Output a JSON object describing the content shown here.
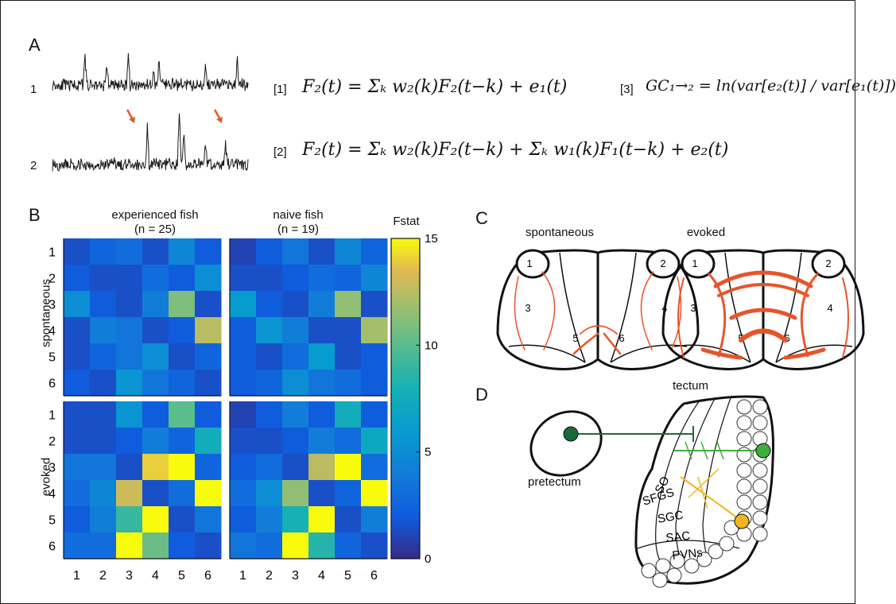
{
  "panels": {
    "a": "A",
    "b": "B",
    "c": "C",
    "d": "D"
  },
  "panel_a": {
    "trace_labels": [
      "1",
      "2"
    ],
    "eq1_num": "[1]",
    "eq2_num": "[2]",
    "eq3_num": "[3]",
    "eq1": "F₂(t) = Σₖ w₂(k)F₂(t−k) + e₁(t)",
    "eq2": "F₂(t) = Σₖ w₂(k)F₂(t−k) + Σₖ w₁(k)F₁(t−k) + e₂(t)",
    "eq3": "GC₁→₂ = ln(var[e₂(t)] / var[e₁(t)])",
    "arrow_color": "#e8542a"
  },
  "panel_b": {
    "col_titles": [
      {
        "line1": "experienced fish",
        "line2": "(n = 25)"
      },
      {
        "line1": "naive fish",
        "line2": "(n = 19)"
      }
    ],
    "row_titles": [
      "spontaneous",
      "evoked"
    ],
    "tick_labels": [
      "1",
      "2",
      "3",
      "4",
      "5",
      "6"
    ],
    "colorbar_title": "Fstat",
    "colorbar_ticks": [
      "15",
      "10",
      "5",
      "0"
    ],
    "colorbar_tick_values": [
      15,
      10,
      5,
      0
    ]
  },
  "chart_data": [
    {
      "type": "heatmap",
      "title": "experienced fish (n = 25)",
      "row_label": "spontaneous",
      "x": [
        1,
        2,
        3,
        4,
        5,
        6
      ],
      "y": [
        1,
        2,
        3,
        4,
        5,
        6
      ],
      "zlim": [
        0,
        15
      ],
      "colormap": "parula",
      "values": [
        [
          1.5,
          2.5,
          3.0,
          1.5,
          4.5,
          2.0
        ],
        [
          2.0,
          1.5,
          1.5,
          3.0,
          2.0,
          5.0
        ],
        [
          5.0,
          2.0,
          1.5,
          4.0,
          11.0,
          1.5
        ],
        [
          1.5,
          4.0,
          3.5,
          1.5,
          2.0,
          12.5
        ],
        [
          1.5,
          2.5,
          3.5,
          5.0,
          1.5,
          2.5
        ],
        [
          2.0,
          1.5,
          5.5,
          3.5,
          2.5,
          1.5
        ]
      ]
    },
    {
      "type": "heatmap",
      "title": "naive fish (n = 19)",
      "row_label": "spontaneous",
      "x": [
        1,
        2,
        3,
        4,
        5,
        6
      ],
      "y": [
        1,
        2,
        3,
        4,
        5,
        6
      ],
      "zlim": [
        0,
        15
      ],
      "colormap": "parula",
      "values": [
        [
          1.0,
          2.0,
          3.5,
          1.5,
          4.5,
          2.5
        ],
        [
          1.5,
          1.5,
          2.0,
          3.0,
          2.5,
          4.5
        ],
        [
          6.0,
          2.0,
          1.5,
          4.0,
          11.5,
          1.5
        ],
        [
          2.0,
          5.5,
          4.0,
          1.5,
          1.5,
          12.0
        ],
        [
          2.0,
          1.5,
          3.0,
          6.0,
          1.5,
          2.0
        ],
        [
          2.0,
          2.5,
          5.0,
          3.5,
          3.0,
          2.0
        ]
      ]
    },
    {
      "type": "heatmap",
      "title": "experienced fish (n = 25)",
      "row_label": "evoked",
      "x": [
        1,
        2,
        3,
        4,
        5,
        6
      ],
      "y": [
        1,
        2,
        3,
        4,
        5,
        6
      ],
      "zlim": [
        0,
        15
      ],
      "colormap": "parula",
      "values": [
        [
          1.5,
          1.5,
          5.5,
          2.0,
          10.0,
          2.0
        ],
        [
          1.5,
          1.5,
          2.0,
          4.0,
          2.5,
          7.5
        ],
        [
          3.5,
          3.5,
          1.5,
          14.0,
          15.0,
          2.5
        ],
        [
          3.0,
          4.5,
          13.0,
          1.5,
          3.0,
          15.0
        ],
        [
          2.0,
          4.0,
          9.0,
          15.0,
          1.5,
          3.5
        ],
        [
          3.0,
          3.0,
          15.0,
          10.5,
          2.0,
          1.5
        ]
      ]
    },
    {
      "type": "heatmap",
      "title": "naive fish (n = 19)",
      "row_label": "evoked",
      "x": [
        1,
        2,
        3,
        4,
        5,
        6
      ],
      "y": [
        1,
        2,
        3,
        4,
        5,
        6
      ],
      "zlim": [
        0,
        15
      ],
      "colormap": "parula",
      "values": [
        [
          1.0,
          2.0,
          4.0,
          2.0,
          7.5,
          2.0
        ],
        [
          1.5,
          1.5,
          2.0,
          4.0,
          3.0,
          7.0
        ],
        [
          2.0,
          3.0,
          1.5,
          12.5,
          15.0,
          3.0
        ],
        [
          3.0,
          5.0,
          11.5,
          1.5,
          2.5,
          15.0
        ],
        [
          2.0,
          4.0,
          8.0,
          15.0,
          1.5,
          4.0
        ],
        [
          3.5,
          3.0,
          15.0,
          8.5,
          2.5,
          1.5
        ]
      ]
    }
  ],
  "panel_c": {
    "titles": [
      "spontaneous",
      "evoked"
    ],
    "region_labels": [
      "1",
      "2",
      "3",
      "4",
      "5",
      "6"
    ],
    "arrow_color": "#e8542a"
  },
  "panel_d": {
    "tectum_label": "tectum",
    "pretectum_label": "pretectum",
    "layer_labels": [
      "SO",
      "SFGS",
      "SGC",
      "SAC",
      "PVNs"
    ],
    "colors": {
      "pretectal_cell": "#1a6b3a",
      "green_neuron": "#3cae3c",
      "yellow_neuron": "#f2b51e"
    }
  }
}
